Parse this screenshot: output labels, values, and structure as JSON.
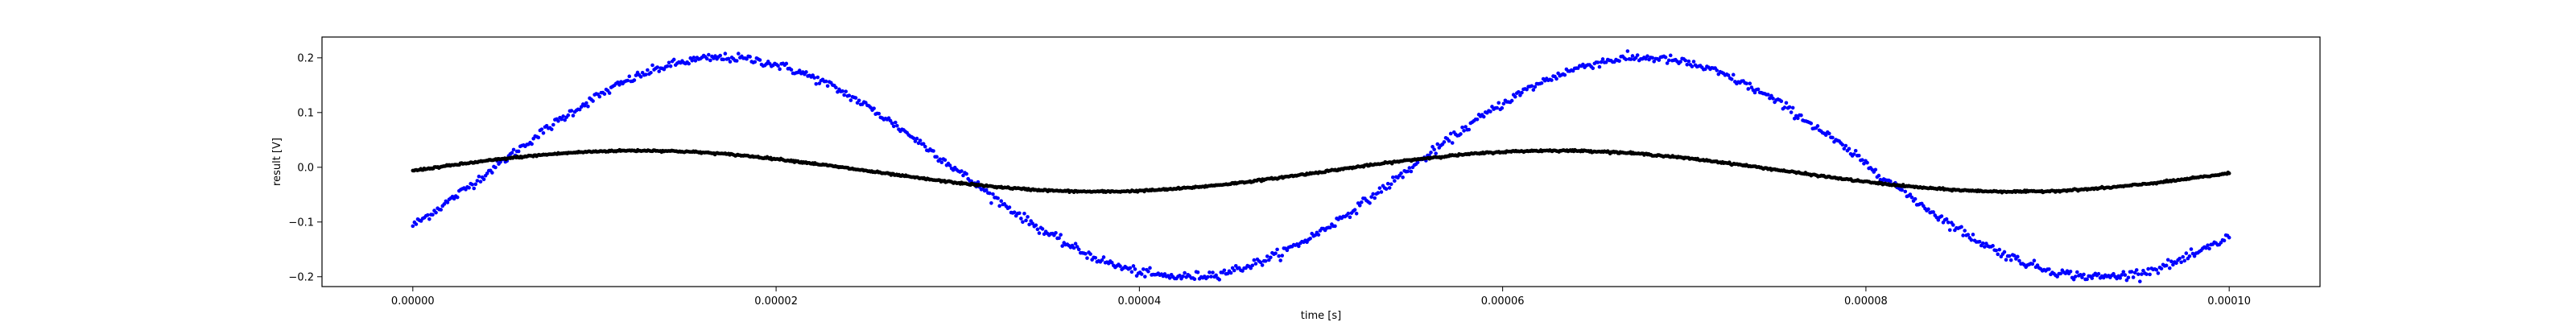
{
  "chart_data": {
    "type": "scatter",
    "xlabel": "time [s]",
    "ylabel": "result [V]",
    "xlim": [
      -5e-06,
      0.000105
    ],
    "ylim": [
      -0.218,
      0.238
    ],
    "x_ticks": [
      0,
      2e-05,
      4e-05,
      6e-05,
      8e-05,
      0.0001
    ],
    "x_tick_labels": [
      "0.00000",
      "0.00002",
      "0.00004",
      "0.00006",
      "0.00008",
      "0.00010"
    ],
    "y_ticks": [
      -0.2,
      -0.1,
      0.0,
      0.1,
      0.2
    ],
    "y_tick_labels": [
      "−0.2",
      "−0.1",
      "0.0",
      "0.1",
      "0.2"
    ],
    "grid": false,
    "series": [
      {
        "color": "#0000ff",
        "marker": "dot",
        "description_function": "sine",
        "amplitude": 0.2,
        "offset": 0.0,
        "frequency_hz": 19800,
        "phase_rad": -0.56,
        "noise": 0.004,
        "points": 1100,
        "x_range": [
          0,
          0.0001
        ]
      },
      {
        "color": "#000000",
        "marker": "dot",
        "description_function": "sine",
        "amplitude": 0.0375,
        "offset": -0.007,
        "frequency_hz": 19800,
        "phase_rad": 0.02,
        "noise": 0.0008,
        "points": 1600,
        "x_range": [
          0,
          0.0001
        ]
      }
    ]
  }
}
